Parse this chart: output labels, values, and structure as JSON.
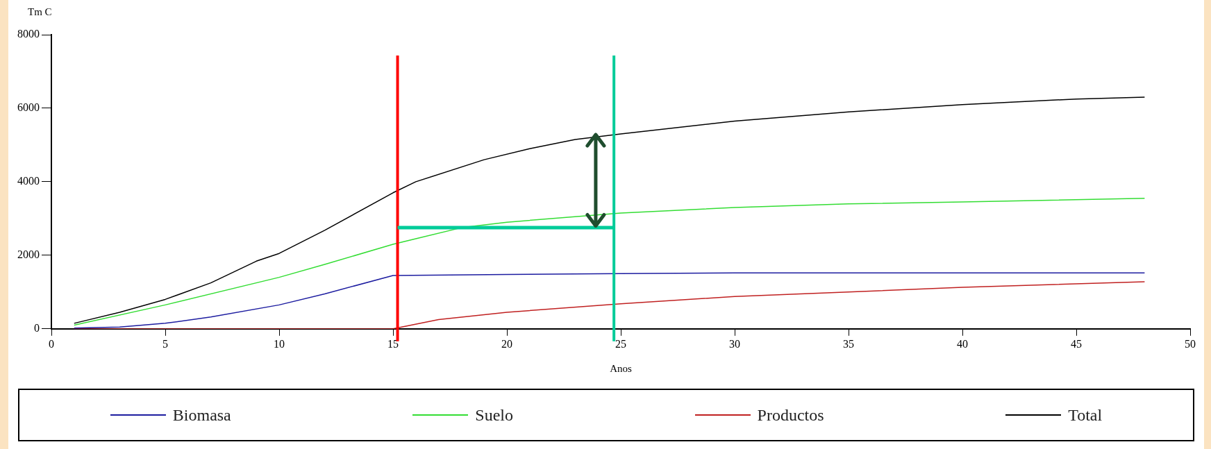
{
  "chart_data": {
    "type": "line",
    "xlabel": "Anos",
    "ylabel": "Tm C",
    "xlim": [
      0,
      50
    ],
    "ylim": [
      0,
      8000
    ],
    "xticks": [
      0,
      5,
      10,
      15,
      20,
      25,
      30,
      35,
      40,
      45,
      50
    ],
    "yticks": [
      0,
      2000,
      4000,
      6000,
      8000
    ],
    "grid": false,
    "legend": "bottom",
    "marker": "none",
    "line_style": "solid",
    "series": [
      {
        "name": "Biomasa",
        "color": "#1c1ca0",
        "x": [
          1,
          3,
          5,
          7,
          10,
          12,
          15,
          20,
          25,
          30,
          48
        ],
        "values": [
          20,
          50,
          150,
          320,
          650,
          950,
          1450,
          1480,
          1500,
          1520,
          1520
        ]
      },
      {
        "name": "Suelo",
        "color": "#33dd33",
        "x": [
          1,
          5,
          10,
          12,
          15,
          16,
          18,
          20,
          25,
          30,
          35,
          40,
          48
        ],
        "values": [
          100,
          650,
          1400,
          1750,
          2300,
          2450,
          2750,
          2900,
          3150,
          3300,
          3400,
          3450,
          3550
        ]
      },
      {
        "name": "Productos",
        "color": "#c02020",
        "x": [
          1,
          15,
          17,
          20,
          25,
          30,
          35,
          40,
          48
        ],
        "values": [
          0,
          0,
          250,
          450,
          680,
          880,
          1000,
          1130,
          1280
        ]
      },
      {
        "name": "Total",
        "color": "#000000",
        "x": [
          1,
          3,
          5,
          7,
          9,
          10,
          12,
          15,
          16,
          19,
          21,
          23,
          25,
          30,
          35,
          40,
          45,
          48
        ],
        "values": [
          150,
          450,
          800,
          1250,
          1840,
          2050,
          2680,
          3700,
          4000,
          4600,
          4900,
          5150,
          5300,
          5650,
          5900,
          6100,
          6250,
          6300
        ]
      }
    ],
    "ref_lines": [
      {
        "axis": "x",
        "value": 15.2,
        "color": "#ff0000"
      },
      {
        "axis": "x",
        "value": 24.7,
        "color": "#00cc99"
      }
    ]
  }
}
